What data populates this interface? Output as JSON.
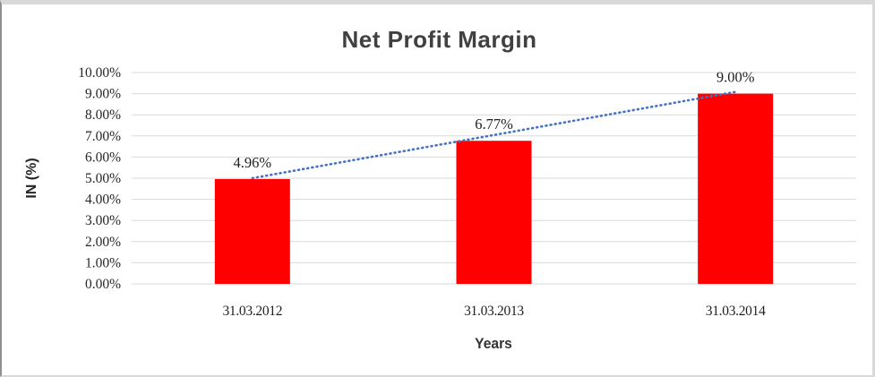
{
  "chart_data": {
    "type": "bar",
    "title": "Net Profit Margin",
    "xlabel": "Years",
    "ylabel": "IN (%)",
    "categories": [
      "31.03.2012",
      "31.03.2013",
      "31.03.2014"
    ],
    "values": [
      4.96,
      6.77,
      9.0
    ],
    "data_labels": [
      "4.96%",
      "6.77%",
      "9.00%"
    ],
    "y_ticks": [
      {
        "value": 0,
        "label": "0.00%"
      },
      {
        "value": 1,
        "label": "1.00%"
      },
      {
        "value": 2,
        "label": "2.00%"
      },
      {
        "value": 3,
        "label": "3.00%"
      },
      {
        "value": 4,
        "label": "4.00%"
      },
      {
        "value": 5,
        "label": "5.00%"
      },
      {
        "value": 6,
        "label": "6.00%"
      },
      {
        "value": 7,
        "label": "7.00%"
      },
      {
        "value": 8,
        "label": "8.00%"
      },
      {
        "value": 9,
        "label": "9.00%"
      },
      {
        "value": 10,
        "label": "10.00%"
      }
    ],
    "ylim": [
      0,
      10
    ],
    "grid": true,
    "legend_position": "none",
    "bar_color": "#FF0000",
    "gridline_color": "#D9D9D9",
    "tick_text_color": "#262626",
    "title_color": "#404040",
    "trendline": {
      "type": "linear",
      "style": "dotted",
      "color": "#4472C4",
      "from_value": 4.96,
      "to_value": 9.0
    }
  }
}
